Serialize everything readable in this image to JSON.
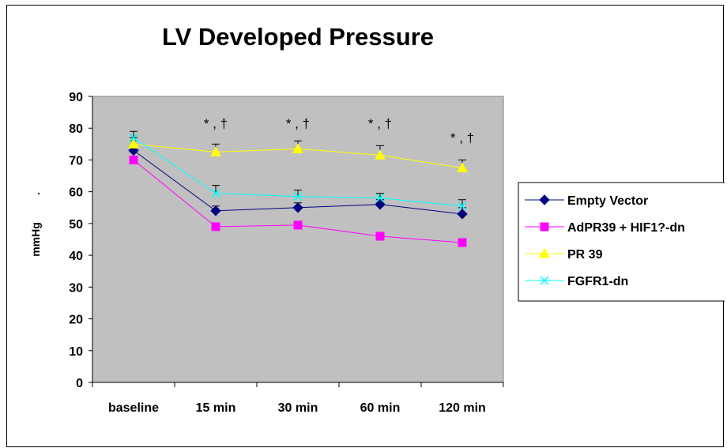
{
  "chart_data": {
    "type": "line",
    "title": "LV Developed Pressure",
    "ylabel": "mmHg",
    "ylabel_mark": ".",
    "xlabel": "",
    "categories": [
      "baseline",
      "15 min",
      "30 min",
      "60 min",
      "120 min"
    ],
    "ylim": [
      0,
      90
    ],
    "yticks": [
      0,
      10,
      20,
      30,
      40,
      50,
      60,
      70,
      80,
      90
    ],
    "grid": false,
    "plot_background": "#c0c0c0",
    "legend_position": "right",
    "series": [
      {
        "name": "Empty Vector",
        "color": "#000080",
        "marker": "diamond",
        "values": [
          73,
          54,
          55,
          56,
          53
        ],
        "errors": [
          3,
          1.5,
          1.5,
          1.5,
          2
        ]
      },
      {
        "name": "AdPR39 + HIF1?-dn",
        "color": "#ff00ff",
        "marker": "square",
        "values": [
          70,
          49,
          49.5,
          46,
          44
        ],
        "errors": [
          1,
          0.8,
          0.8,
          0.8,
          1
        ]
      },
      {
        "name": "PR 39",
        "color": "#ffff00",
        "marker": "triangle",
        "values": [
          75,
          72.5,
          73.5,
          71.5,
          67.5
        ],
        "errors": [
          2,
          2.5,
          2.5,
          3,
          2.5
        ]
      },
      {
        "name": "FGFR1-dn",
        "color": "#00ffff",
        "marker": "x",
        "values": [
          77,
          59.5,
          58.5,
          58,
          55.5
        ],
        "errors": [
          2,
          2.5,
          2,
          1.5,
          2
        ]
      }
    ],
    "annotations": [
      {
        "category": "15 min",
        "text": "* , †"
      },
      {
        "category": "30 min",
        "text": "* , †"
      },
      {
        "category": "60 min",
        "text": "* , †"
      },
      {
        "category": "120 min",
        "text": "* , †"
      }
    ]
  }
}
